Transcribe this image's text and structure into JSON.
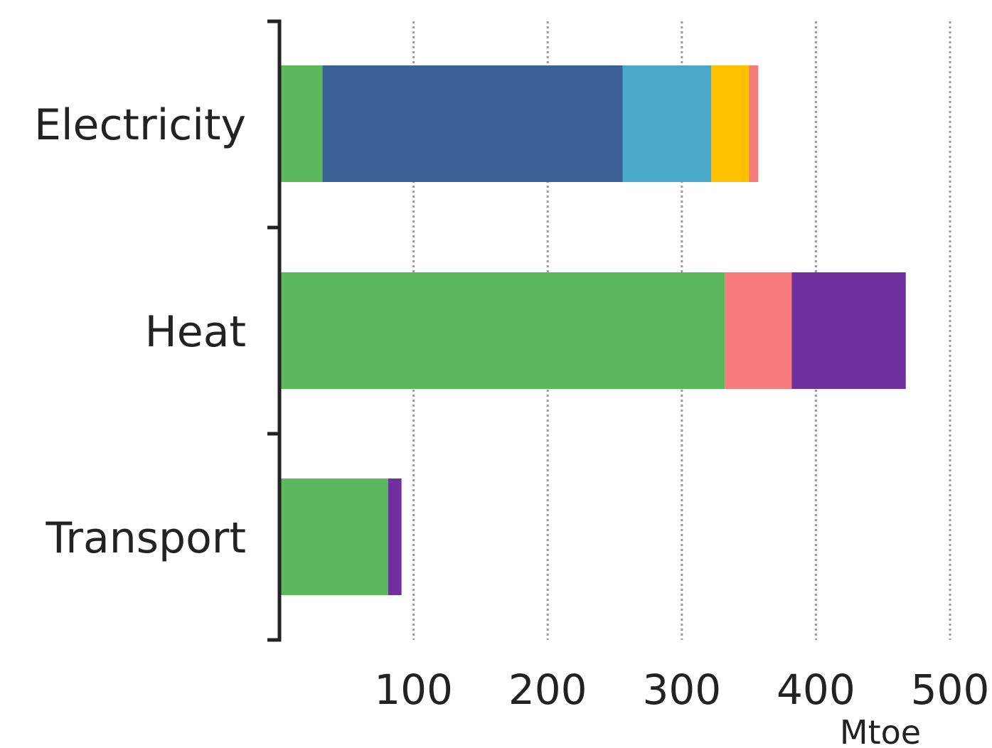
{
  "chart_data": {
    "type": "bar",
    "orientation": "horizontal",
    "stacked": true,
    "categories": [
      "Electricity",
      "Heat",
      "Transport"
    ],
    "x_ticks": [
      "100",
      "200",
      "300",
      "400",
      "500"
    ],
    "x_unit": "Mtoe",
    "xlim": [
      0,
      500
    ],
    "grid": "vertical dotted",
    "title": "",
    "xlabel": "Mtoe",
    "ylabel": "",
    "bars": [
      {
        "category": "Electricity",
        "segments": [
          {
            "value": 32,
            "color": "#5cb85c"
          },
          {
            "value": 224,
            "color": "#3a6096"
          },
          {
            "value": 66,
            "color": "#4aa8c8"
          },
          {
            "value": 28,
            "color": "#ffc000"
          },
          {
            "value": 7,
            "color": "#f77b7b"
          }
        ]
      },
      {
        "category": "Heat",
        "segments": [
          {
            "value": 332,
            "color": "#5cb85c"
          },
          {
            "value": 50,
            "color": "#f77b7b"
          },
          {
            "value": 85,
            "color": "#7030a0"
          }
        ]
      },
      {
        "category": "Transport",
        "segments": [
          {
            "value": 81,
            "color": "#5cb85c"
          },
          {
            "value": 10,
            "color": "#7030a0"
          }
        ]
      }
    ]
  }
}
